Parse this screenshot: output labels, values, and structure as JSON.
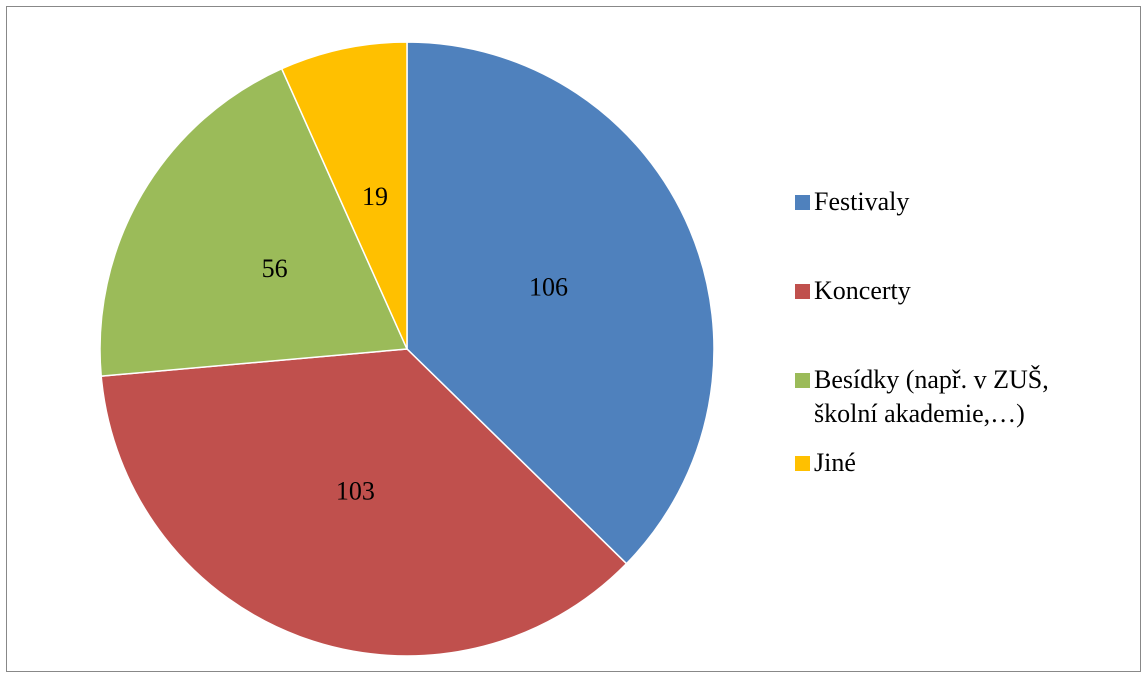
{
  "chart_data": {
    "type": "pie",
    "categories": [
      "Festivaly",
      "Koncerty",
      "Besídky (např. v ZUŠ, školní akademie,…)",
      "Jiné"
    ],
    "values": [
      106,
      103,
      56,
      19
    ],
    "colors": [
      "#4f81bd",
      "#c0504d",
      "#9bbb59",
      "#ffc000"
    ],
    "legend": "right"
  }
}
